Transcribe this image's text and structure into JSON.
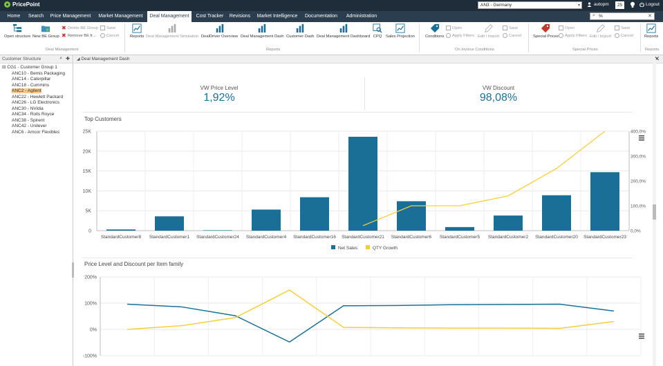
{
  "app": {
    "logo_text": "PricePoint",
    "context_select": "AN3 - Germany",
    "user": "autopm",
    "badge": "25",
    "logout": "Logout"
  },
  "nav": {
    "items": [
      "Home",
      "Search",
      "Price Management",
      "Market Management",
      "Deal Management",
      "Cost Tracker",
      "Revisions",
      "Market Intelligence",
      "Documentation",
      "Administration"
    ],
    "active": "Deal Management",
    "search_value": "%"
  },
  "ribbon": {
    "open_structure": "Open structure",
    "new_be_group": "New BE Group",
    "delete_be_group": "Delete BE Group",
    "remove_be": "Remove BE fr...",
    "save": "Save",
    "cancel": "Cancel",
    "group_deal_mgmt": "Deal Management",
    "reports_btn": "Reports",
    "report_items": [
      "Deal Management Simulation",
      "DealDriver Overview",
      "Deal Management Dash",
      "Customer Dash",
      "Deal Management Dashboard",
      "CPQ",
      "Sales Projection"
    ],
    "group_reports": "Reports",
    "conditions": "Conditions",
    "open": "Open",
    "apply_filters": "Apply Filters",
    "edit_import": "Edit / Import",
    "group_on_invoice": "On Invoice Conditions",
    "special_prices": "Special Prices",
    "group_special_prices": "Special Prices",
    "reports_right": "Reports",
    "group_reports_right": "Reports"
  },
  "left_panel": {
    "title": "Customer Structure",
    "root": "CG1 - Customer Group 1",
    "children": [
      "ANC10 - Bemis Packaging",
      "ANC14 - Caterpillar",
      "ANC18 - Cummins",
      "ANC2 - Agilent",
      "ANC22 - Hewlett Packard",
      "ANC26 - LG Electronics",
      "ANC30 - NVidia",
      "ANC34 - Rolls Royce",
      "ANC38 - Spirent",
      "ANC42 - Unilever",
      "ANC6 - Amcor Flexibles"
    ],
    "selected": "ANC2 - Agilent"
  },
  "main": {
    "tab_title": "Deal Management Dash",
    "kpi_price_label": "VW Price Level",
    "kpi_price_value": "1,92%",
    "kpi_discount_label": "VW Discount",
    "kpi_discount_value": "98,08%"
  },
  "chart_data": [
    {
      "type": "bar",
      "title": "Top Customers",
      "categories": [
        "StandardCustomer8",
        "StandardCustomer1",
        "StandardCustomer24",
        "StandardCustomer4",
        "StandardCustomer16",
        "StandardCustomer21",
        "StandardCustomer6",
        "StandardCustomer5",
        "StandardCustomer2",
        "StandardCustomer20",
        "StandardCustomer23"
      ],
      "series": [
        {
          "name": "Net Sales",
          "kind": "bar",
          "axis": "left",
          "color": "#1a6f96",
          "values": [
            300,
            3600,
            100,
            5300,
            8400,
            23600,
            7400,
            900,
            3800,
            8900,
            14700
          ]
        },
        {
          "name": "QTY Growth",
          "kind": "line",
          "axis": "right",
          "color": "#f5cf3a",
          "values": [
            null,
            null,
            null,
            null,
            null,
            20,
            100,
            100,
            140,
            250,
            400
          ]
        }
      ],
      "y_left": {
        "ticks": [
          0,
          5000,
          10000,
          15000,
          20000,
          25000
        ],
        "tick_labels": [
          "0",
          "5K",
          "10K",
          "15K",
          "20K",
          "25K"
        ],
        "ylim": [
          0,
          25000
        ]
      },
      "y_right": {
        "ticks": [
          0,
          100,
          200,
          300,
          400
        ],
        "tick_labels": [
          "0,0%",
          "100,0%",
          "200,0%",
          "300,0%",
          "400,0%"
        ],
        "ylim": [
          0,
          400
        ]
      },
      "legend": "bottom-center",
      "grid": true
    },
    {
      "type": "line",
      "title": "Price Level and Discount per Item family",
      "series": [
        {
          "color": "#1a6f96",
          "values": [
            96,
            86,
            52,
            -48,
            90,
            91,
            94,
            95,
            96,
            70
          ]
        },
        {
          "color": "#f5cf3a",
          "values": [
            0,
            14,
            45,
            150,
            8,
            6,
            5,
            5,
            4,
            30
          ]
        }
      ],
      "y": {
        "ticks": [
          -100,
          0,
          100,
          200
        ],
        "tick_labels": [
          "-100%",
          "0%",
          "100%",
          "200%"
        ],
        "ylim": [
          -100,
          200
        ]
      },
      "grid": true
    }
  ]
}
